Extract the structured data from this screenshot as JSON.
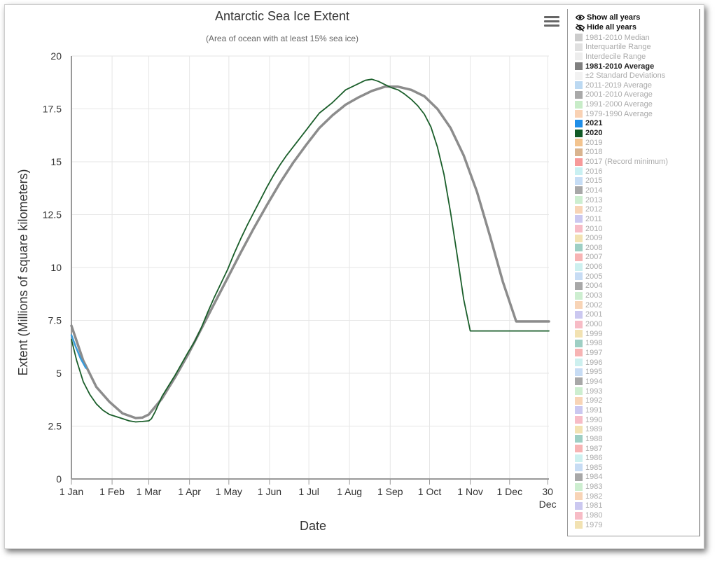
{
  "chart_data": {
    "type": "line",
    "title": "Antarctic Sea Ice Extent",
    "subtitle": "(Area of ocean with at least 15% sea ice)",
    "xlabel": "Date",
    "ylabel": "Extent (Millions of square kilometers)",
    "ylim": [
      0,
      20
    ],
    "xlim": [
      1,
      365
    ],
    "yticks": [
      0,
      2.5,
      5,
      7.5,
      10,
      12.5,
      15,
      17.5,
      20
    ],
    "yticklabels": [
      "0",
      "2.5",
      "5",
      "7.5",
      "10",
      "12.5",
      "15",
      "17.5",
      "20"
    ],
    "xticks": [
      {
        "day": 1,
        "label": "1 Jan"
      },
      {
        "day": 32,
        "label": "1 Feb"
      },
      {
        "day": 60,
        "label": "1 Mar"
      },
      {
        "day": 91,
        "label": "1 Apr"
      },
      {
        "day": 121,
        "label": "1 May"
      },
      {
        "day": 152,
        "label": "1 Jun"
      },
      {
        "day": 182,
        "label": "1 Jul"
      },
      {
        "day": 213,
        "label": "1 Aug"
      },
      {
        "day": 244,
        "label": "1 Sep"
      },
      {
        "day": 274,
        "label": "1 Oct"
      },
      {
        "day": 305,
        "label": "1 Nov"
      },
      {
        "day": 335,
        "label": "1 Dec"
      },
      {
        "day": 364,
        "label": "30",
        "label2": "Dec"
      }
    ],
    "grid": true,
    "legend_position": "right",
    "series": [
      {
        "name": "1981-2010 Average",
        "color": "#8c8c8c",
        "x": [
          1,
          10,
          20,
          30,
          40,
          50,
          55,
          60,
          70,
          80,
          90,
          100,
          110,
          120,
          130,
          140,
          150,
          160,
          170,
          180,
          190,
          200,
          210,
          220,
          230,
          240,
          250,
          260,
          270,
          280,
          290,
          300,
          310,
          320,
          330,
          340,
          350,
          360,
          365
        ],
        "y": [
          7.25,
          5.6,
          4.35,
          3.65,
          3.1,
          2.88,
          2.9,
          3.05,
          3.8,
          4.8,
          5.9,
          7.1,
          8.3,
          9.5,
          10.7,
          11.85,
          12.95,
          14.0,
          14.95,
          15.8,
          16.6,
          17.2,
          17.7,
          18.05,
          18.35,
          18.55,
          18.55,
          18.4,
          18.1,
          17.5,
          16.6,
          15.3,
          13.6,
          11.5,
          9.3,
          7.45,
          7.45,
          7.45,
          7.45
        ]
      },
      {
        "name": "2020",
        "color": "#1a5e2a",
        "x": [
          1,
          5,
          10,
          15,
          20,
          25,
          30,
          35,
          40,
          45,
          50,
          55,
          60,
          62,
          65,
          70,
          75,
          80,
          85,
          90,
          95,
          100,
          105,
          110,
          115,
          120,
          125,
          130,
          135,
          140,
          145,
          150,
          155,
          160,
          165,
          170,
          175,
          180,
          185,
          190,
          195,
          200,
          205,
          210,
          215,
          220,
          225,
          230,
          235,
          240,
          245,
          250,
          255,
          260,
          265,
          270,
          275,
          280,
          285,
          290,
          295,
          300,
          305,
          310,
          315,
          320,
          325,
          330,
          335,
          340,
          345,
          350,
          355,
          360,
          365
        ],
        "y": [
          6.6,
          5.6,
          4.6,
          4.0,
          3.55,
          3.25,
          3.05,
          2.95,
          2.85,
          2.75,
          2.7,
          2.72,
          2.75,
          2.85,
          3.2,
          3.9,
          4.4,
          4.9,
          5.45,
          6.0,
          6.5,
          7.15,
          7.9,
          8.6,
          9.25,
          9.9,
          10.65,
          11.35,
          12.0,
          12.6,
          13.2,
          13.8,
          14.35,
          14.85,
          15.3,
          15.7,
          16.1,
          16.5,
          16.9,
          17.3,
          17.55,
          17.8,
          18.1,
          18.4,
          18.55,
          18.7,
          18.85,
          18.9,
          18.8,
          18.65,
          18.5,
          18.4,
          18.2,
          17.95,
          17.65,
          17.25,
          16.65,
          15.7,
          14.4,
          12.6,
          10.6,
          8.5,
          7.0,
          7.0,
          7.0,
          7.0,
          7.0,
          7.0,
          7.0,
          7.0,
          7.0,
          7.0,
          7.0,
          7.0,
          7.0
        ]
      },
      {
        "name": "2021",
        "color": "#3a9bd9",
        "x": [
          1,
          4,
          8,
          12
        ],
        "y": [
          6.8,
          6.3,
          5.7,
          5.25
        ]
      }
    ]
  },
  "legend": {
    "show_all_label": "Show all years",
    "hide_all_label": "Hide all years",
    "items": [
      {
        "label": "1981-2010 Median",
        "color": "#cccccc",
        "on": false
      },
      {
        "label": "Interquartile Range",
        "color": "#e0e0e0",
        "on": false
      },
      {
        "label": "Interdecile Range",
        "color": "#ededed",
        "on": false
      },
      {
        "label": "1981-2010 Average",
        "color": "#808080",
        "on": true
      },
      {
        "label": "±2 Standard Deviations",
        "color": "#f2f2f2",
        "on": false
      },
      {
        "label": "2011-2019 Average",
        "color": "#bcd9f2",
        "on": false
      },
      {
        "label": "2001-2010 Average",
        "color": "#a9a9a9",
        "on": false
      },
      {
        "label": "1991-2000 Average",
        "color": "#c8ecc8",
        "on": false
      },
      {
        "label": "1979-1990 Average",
        "color": "#f9d2b4",
        "on": false
      },
      {
        "label": "2021",
        "color": "#1f8ee8",
        "on": true
      },
      {
        "label": "2020",
        "color": "#115a26",
        "on": true
      },
      {
        "label": "2019",
        "color": "#f3c48f",
        "on": false
      },
      {
        "label": "2018",
        "color": "#d9b48f",
        "on": false
      },
      {
        "label": "2017 (Record minimum)",
        "color": "#f79a9a",
        "on": false
      },
      {
        "label": "2016",
        "color": "#c9f0f2",
        "on": false
      },
      {
        "label": "2015",
        "color": "#c6ddf5",
        "on": false
      },
      {
        "label": "2014",
        "color": "#a8a8a8",
        "on": false
      },
      {
        "label": "2013",
        "color": "#cdeed0",
        "on": false
      },
      {
        "label": "2012",
        "color": "#f8d4b6",
        "on": false
      },
      {
        "label": "2011",
        "color": "#cbc8f0",
        "on": false
      },
      {
        "label": "2010",
        "color": "#f7bcc6",
        "on": false
      },
      {
        "label": "2009",
        "color": "#f2e2b2",
        "on": false
      },
      {
        "label": "2008",
        "color": "#9ecfc4",
        "on": false
      },
      {
        "label": "2007",
        "color": "#f7b4b4",
        "on": false
      },
      {
        "label": "2006",
        "color": "#cdf0ef",
        "on": false
      },
      {
        "label": "2005",
        "color": "#c7dcf4",
        "on": false
      },
      {
        "label": "2004",
        "color": "#a8a8a8",
        "on": false
      },
      {
        "label": "2003",
        "color": "#cdeed0",
        "on": false
      },
      {
        "label": "2002",
        "color": "#f8d4b6",
        "on": false
      },
      {
        "label": "2001",
        "color": "#cbc8f0",
        "on": false
      },
      {
        "label": "2000",
        "color": "#f7bcc6",
        "on": false
      },
      {
        "label": "1999",
        "color": "#f2e2b2",
        "on": false
      },
      {
        "label": "1998",
        "color": "#9ecfc4",
        "on": false
      },
      {
        "label": "1997",
        "color": "#f7b4b4",
        "on": false
      },
      {
        "label": "1996",
        "color": "#cdf0ef",
        "on": false
      },
      {
        "label": "1995",
        "color": "#c7dcf4",
        "on": false
      },
      {
        "label": "1994",
        "color": "#a8a8a8",
        "on": false
      },
      {
        "label": "1993",
        "color": "#cdeed0",
        "on": false
      },
      {
        "label": "1992",
        "color": "#f8d4b6",
        "on": false
      },
      {
        "label": "1991",
        "color": "#cbc8f0",
        "on": false
      },
      {
        "label": "1990",
        "color": "#f7bcc6",
        "on": false
      },
      {
        "label": "1989",
        "color": "#f2e2b2",
        "on": false
      },
      {
        "label": "1988",
        "color": "#9ecfc4",
        "on": false
      },
      {
        "label": "1987",
        "color": "#f7b4b4",
        "on": false
      },
      {
        "label": "1986",
        "color": "#cdf0ef",
        "on": false
      },
      {
        "label": "1985",
        "color": "#c7dcf4",
        "on": false
      },
      {
        "label": "1984",
        "color": "#a8a8a8",
        "on": false
      },
      {
        "label": "1983",
        "color": "#cdeed0",
        "on": false
      },
      {
        "label": "1982",
        "color": "#f8d4b6",
        "on": false
      },
      {
        "label": "1981",
        "color": "#cbc8f0",
        "on": false
      },
      {
        "label": "1980",
        "color": "#f7bcc6",
        "on": false
      },
      {
        "label": "1979",
        "color": "#f2e2b2",
        "on": false
      }
    ]
  },
  "icons": {
    "menu": "hamburger-menu-icon",
    "show": "eye-icon",
    "hide": "eye-slash-icon"
  }
}
